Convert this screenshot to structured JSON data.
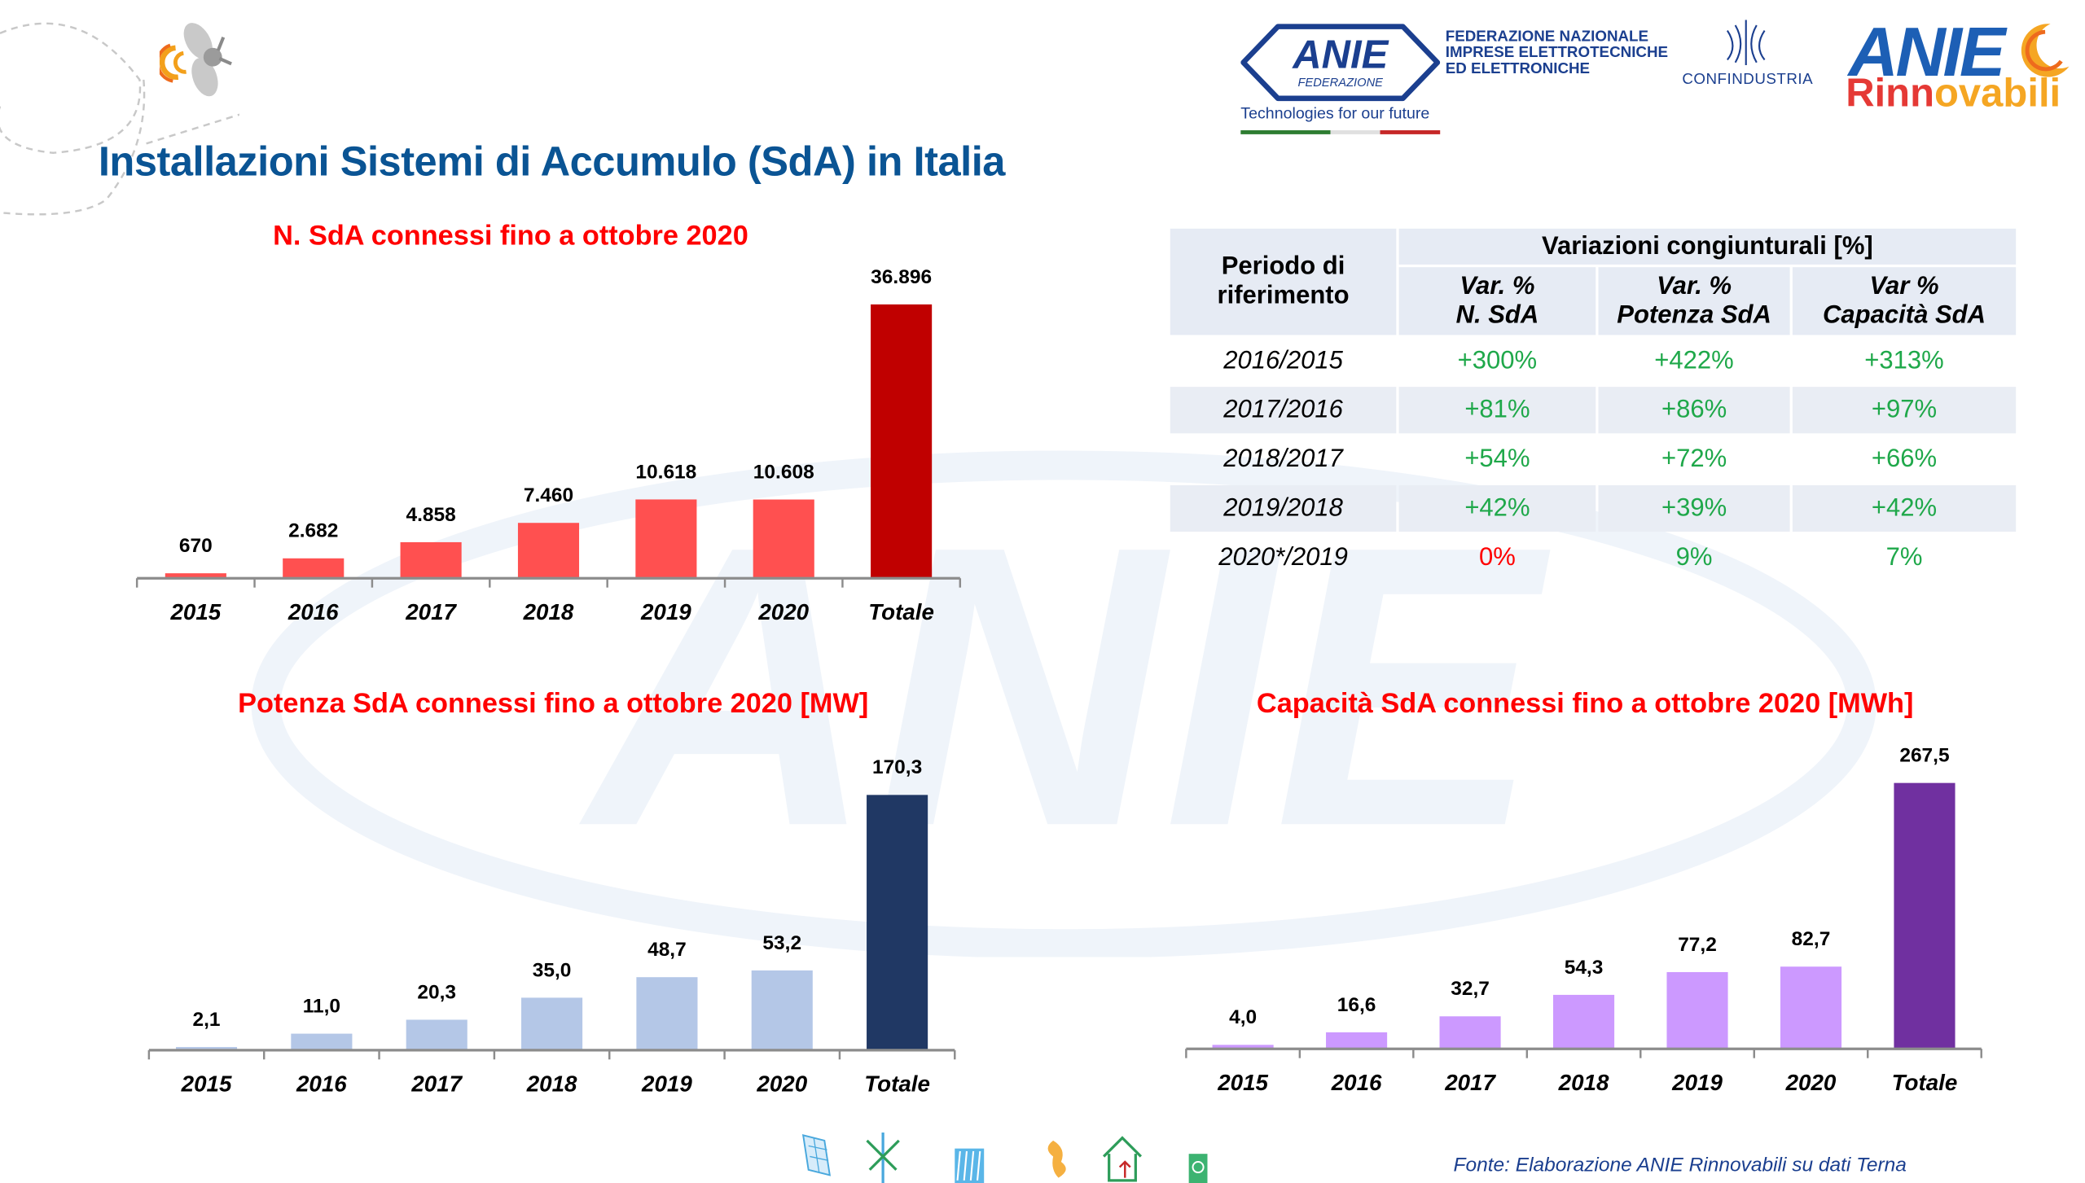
{
  "header": {
    "title": "Installazioni Sistemi di Accumulo (SdA)  in Italia",
    "logos": {
      "anie_federazione": {
        "mark": "ANIE",
        "sub": "FEDERAZIONE",
        "text_lines": [
          "FEDERAZIONE NAZIONALE",
          "IMPRESE ELETTROTECNICHE",
          "ED ELETTRONICHE"
        ],
        "tagline": "Technologies for our future"
      },
      "confindustria": {
        "text": "CONFINDUSTRIA"
      },
      "anie_rinnovabili": {
        "mark": "ANIE",
        "rinn_part1": "Rinn",
        "rinn_part2": "ovabili"
      }
    }
  },
  "colors": {
    "title_blue": "#0a5494",
    "chart_title_red": "#ff0000",
    "n_sda_bar": "#ff5050",
    "n_sda_total": "#c00000",
    "potenza_bar": "#b4c7e7",
    "potenza_total": "#203864",
    "capacita_bar": "#cc99ff",
    "capacita_total": "#7030a0",
    "positive_green": "#1fa84a",
    "negative_red": "#ff0000"
  },
  "chart_data": [
    {
      "type": "bar",
      "title": "N. SdA connessi fino a ottobre 2020",
      "categories": [
        "2015",
        "2016",
        "2017",
        "2018",
        "2019",
        "2020",
        "Totale"
      ],
      "values": [
        670,
        2682,
        4858,
        7460,
        10618,
        10608,
        36896
      ],
      "value_labels": [
        "670",
        "2.682",
        "4.858",
        "7.460",
        "10.618",
        "10.608",
        "36.896"
      ],
      "xlabel": "",
      "ylabel": "",
      "ylim": [
        0,
        36896
      ],
      "grid": false,
      "legend": "none"
    },
    {
      "type": "bar",
      "title": "Potenza SdA connessi fino a ottobre 2020 [MW]",
      "categories": [
        "2015",
        "2016",
        "2017",
        "2018",
        "2019",
        "2020",
        "Totale"
      ],
      "values": [
        2.1,
        11.0,
        20.3,
        35.0,
        48.7,
        53.2,
        170.3
      ],
      "value_labels": [
        "2,1",
        "11,0",
        "20,3",
        "35,0",
        "48,7",
        "53,2",
        "170,3"
      ],
      "xlabel": "",
      "ylabel": "MW",
      "ylim": [
        0,
        170.3
      ],
      "grid": false,
      "legend": "none"
    },
    {
      "type": "bar",
      "title": "Capacità SdA connessi fino a ottobre 2020 [MWh]",
      "categories": [
        "2015",
        "2016",
        "2017",
        "2018",
        "2019",
        "2020",
        "Totale"
      ],
      "values": [
        4.0,
        16.6,
        32.7,
        54.3,
        77.2,
        82.7,
        267.5
      ],
      "value_labels": [
        "4,0",
        "16,6",
        "32,7",
        "54,3",
        "77,2",
        "82,7",
        "267,5"
      ],
      "xlabel": "",
      "ylabel": "MWh",
      "ylim": [
        0,
        267.5
      ],
      "grid": false,
      "legend": "none"
    },
    {
      "type": "table",
      "title": "Variazioni congiunturali [%]",
      "columns": [
        "Periodo di riferimento",
        "Var. % N. SdA",
        "Var. % Potenza SdA",
        "Var % Capacità SdA"
      ],
      "rows": [
        [
          "2016/2015",
          "+300%",
          "+422%",
          "+313%"
        ],
        [
          "2017/2016",
          "+81%",
          "+86%",
          "+97%"
        ],
        [
          "2018/2017",
          "+54%",
          "+72%",
          "+66%"
        ],
        [
          "2019/2018",
          "+42%",
          "+39%",
          "+42%"
        ],
        [
          "2020*/2019",
          "0%",
          "9%",
          "7%"
        ]
      ]
    }
  ],
  "table": {
    "header_period_line1": "Periodo di",
    "header_period_line2": "riferimento",
    "header_group": "Variazioni congiunturali [%]",
    "col1_line1": "Var. %",
    "col1_line2": "N. SdA",
    "col2_line1": "Var. %",
    "col2_line2": "Potenza SdA",
    "col3_line1": "Var %",
    "col3_line2": "Capacità SdA",
    "rows": [
      {
        "period": "2016/2015",
        "n": "+300%",
        "p": "+422%",
        "c": "+313%",
        "n_class": "cell-pos",
        "p_class": "cell-pos",
        "c_class": "cell-pos"
      },
      {
        "period": "2017/2016",
        "n": "+81%",
        "p": "+86%",
        "c": "+97%",
        "n_class": "cell-pos",
        "p_class": "cell-pos",
        "c_class": "cell-pos"
      },
      {
        "period": "2018/2017",
        "n": "+54%",
        "p": "+72%",
        "c": "+66%",
        "n_class": "cell-pos",
        "p_class": "cell-pos",
        "c_class": "cell-pos"
      },
      {
        "period": "2019/2018",
        "n": "+42%",
        "p": "+39%",
        "c": "+42%",
        "n_class": "cell-pos",
        "p_class": "cell-pos",
        "c_class": "cell-pos"
      },
      {
        "period": "2020*/2019",
        "n": "0%",
        "p": "9%",
        "c": "7%",
        "n_class": "cell-neg",
        "p_class": "cell-pos",
        "c_class": "cell-pos"
      }
    ]
  },
  "footer": {
    "source": "Fonte: Elaborazione ANIE Rinnovabili su dati Terna",
    "icons": [
      "solar-panel-icon",
      "wind-turbine-icon",
      "solar-thermal-icon",
      "hydro-turbine-icon",
      "geothermal-house-icon",
      "biomass-icon"
    ]
  }
}
